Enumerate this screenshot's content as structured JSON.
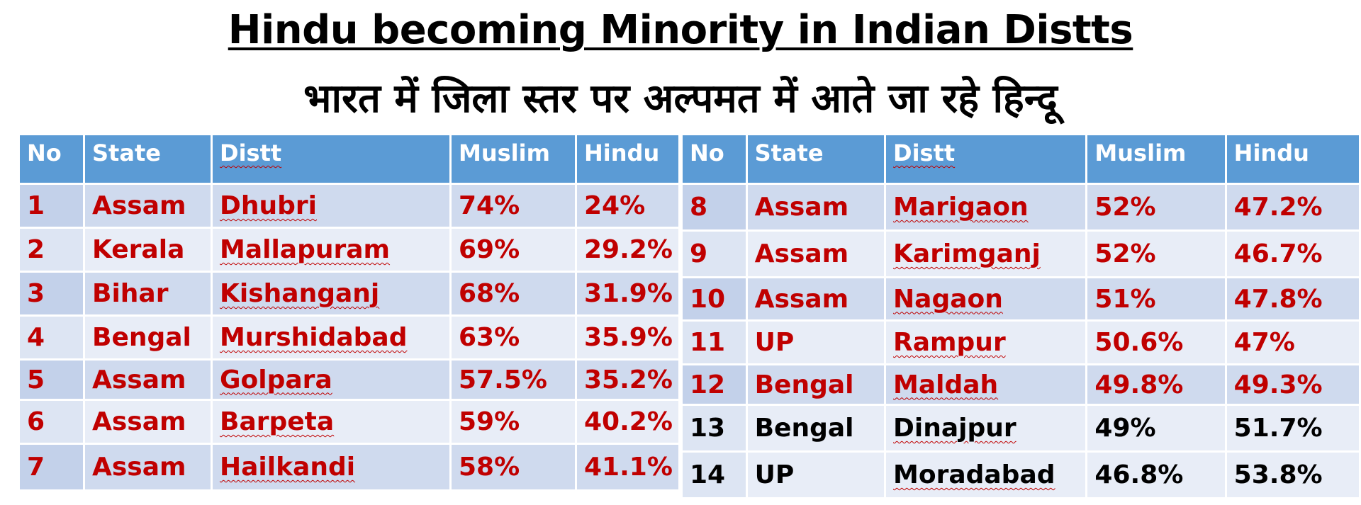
{
  "title": "Hindu becoming Minority in Indian Distts",
  "subtitle": "भारत में जिला स्तर पर अल्पमत में आते जा रहे हिन्दू",
  "headers": [
    "No",
    "State",
    "Distt",
    "Muslim",
    "Hindu"
  ],
  "left_rows": [
    {
      "no": "1",
      "state": "Assam",
      "distt": "Dhubri",
      "muslim": "74%",
      "hindu": "24%"
    },
    {
      "no": "2",
      "state": "Kerala",
      "distt": "Mallapuram",
      "muslim": "69%",
      "hindu": "29.2%"
    },
    {
      "no": "3",
      "state": "Bihar",
      "distt": "Kishanganj",
      "muslim": "68%",
      "hindu": "31.9%"
    },
    {
      "no": "4",
      "state": "Bengal",
      "distt": "Murshidabad",
      "muslim": "63%",
      "hindu": "35.9%"
    },
    {
      "no": "5",
      "state": "Assam",
      "distt": "Golpara",
      "muslim": "57.5%",
      "hindu": "35.2%"
    },
    {
      "no": "6",
      "state": "Assam",
      "distt": "Barpeta",
      "muslim": "59%",
      "hindu": "40.2%"
    },
    {
      "no": "7",
      "state": "Assam",
      "distt": "Hailkandi",
      "muslim": "58%",
      "hindu": "41.1%"
    }
  ],
  "right_rows": [
    {
      "no": "8",
      "state": "Assam",
      "distt": "Marigaon",
      "muslim": "52%",
      "hindu": "47.2%"
    },
    {
      "no": "9",
      "state": "Assam",
      "distt": "Karimganj",
      "muslim": "52%",
      "hindu": "46.7%"
    },
    {
      "no": "10",
      "state": "Assam",
      "distt": "Nagaon",
      "muslim": "51%",
      "hindu": "47.8%"
    },
    {
      "no": "11",
      "state": "UP",
      "distt": "Rampur",
      "muslim": "50.6%",
      "hindu": "47%"
    },
    {
      "no": "12",
      "state": "Bengal",
      "distt": "Maldah",
      "muslim": "49.8%",
      "hindu": "49.3%"
    },
    {
      "no": "13",
      "state": "Bengal",
      "distt": "Dinajpur",
      "muslim": "49%",
      "hindu": "51.7%"
    },
    {
      "no": "14",
      "state": "UP",
      "distt": "Moradabad",
      "muslim": "46.8%",
      "hindu": "53.8%"
    }
  ],
  "colors": {
    "header_bg": "#5b9bd5",
    "row_odd": "#cfdaee",
    "row_even": "#e8edf7",
    "red_text": "#c00000"
  }
}
